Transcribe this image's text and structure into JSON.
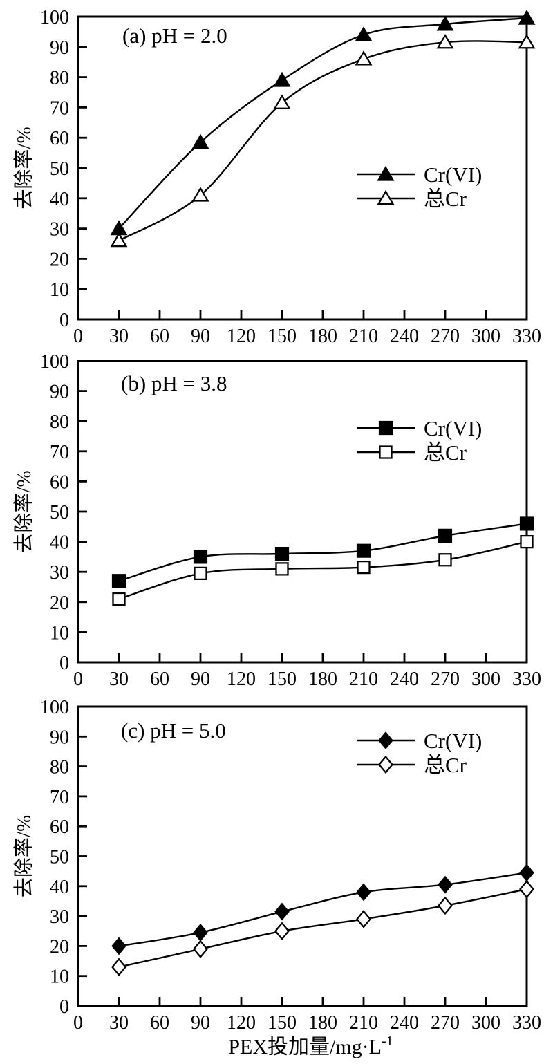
{
  "figure": {
    "background": "#ffffff",
    "line_color": "#000000",
    "x_axis_title": "PEX投加量/mg·L⁻¹",
    "y_axis_title": "去除率/%"
  },
  "chart_data": [
    {
      "type": "line",
      "title": "(a) pH = 2.0",
      "xlabel": "PEX投加量/mg·L⁻¹",
      "ylabel": "去除率/%",
      "xlim": [
        0,
        330
      ],
      "ylim": [
        0,
        100
      ],
      "x_ticks": [
        0,
        30,
        60,
        90,
        120,
        150,
        180,
        210,
        240,
        270,
        300,
        330
      ],
      "y_ticks": [
        0,
        10,
        20,
        30,
        40,
        50,
        60,
        70,
        80,
        90,
        100
      ],
      "grid": false,
      "legend_position": "right-center",
      "x": [
        30,
        90,
        150,
        210,
        270,
        330
      ],
      "series": [
        {
          "id": "cr6",
          "name": "Cr(VI)",
          "marker": "triangle-filled",
          "values": [
            30,
            58.5,
            79,
            94,
            97.5,
            99.5
          ]
        },
        {
          "id": "total-cr",
          "name": "总Cr",
          "marker": "triangle-open",
          "values": [
            26,
            41,
            71.5,
            86,
            91.5,
            91.5
          ]
        }
      ]
    },
    {
      "type": "line",
      "title": "(b) pH = 3.8",
      "xlabel": "PEX投加量/mg·L⁻¹",
      "ylabel": "去除率/%",
      "xlim": [
        0,
        330
      ],
      "ylim": [
        0,
        100
      ],
      "x_ticks": [
        0,
        30,
        60,
        90,
        120,
        150,
        180,
        210,
        240,
        270,
        300,
        330
      ],
      "y_ticks": [
        0,
        10,
        20,
        30,
        40,
        50,
        60,
        70,
        80,
        90,
        100
      ],
      "grid": false,
      "legend_position": "right-upper",
      "x": [
        30,
        90,
        150,
        210,
        270,
        330
      ],
      "series": [
        {
          "id": "cr6",
          "name": "Cr(VI)",
          "marker": "square-filled",
          "values": [
            27,
            35,
            36,
            37,
            42,
            46
          ]
        },
        {
          "id": "total-cr",
          "name": "总Cr",
          "marker": "square-open",
          "values": [
            21,
            29.5,
            31,
            31.5,
            34,
            40
          ]
        }
      ]
    },
    {
      "type": "line",
      "title": "(c) pH = 5.0",
      "xlabel": "PEX投加量/mg·L⁻¹",
      "ylabel": "去除率/%",
      "xlim": [
        0,
        330
      ],
      "ylim": [
        0,
        100
      ],
      "x_ticks": [
        0,
        30,
        60,
        90,
        120,
        150,
        180,
        210,
        240,
        270,
        300,
        330
      ],
      "y_ticks": [
        0,
        10,
        20,
        30,
        40,
        50,
        60,
        70,
        80,
        90,
        100
      ],
      "grid": false,
      "legend_position": "right-top",
      "x": [
        30,
        90,
        150,
        210,
        270,
        330
      ],
      "series": [
        {
          "id": "cr6",
          "name": "Cr(VI)",
          "marker": "diamond-filled",
          "values": [
            20,
            24.5,
            31.5,
            38,
            40.5,
            44.5
          ]
        },
        {
          "id": "total-cr",
          "name": "总Cr",
          "marker": "diamond-open",
          "values": [
            13,
            19,
            25,
            29,
            33.5,
            39
          ]
        }
      ]
    }
  ]
}
